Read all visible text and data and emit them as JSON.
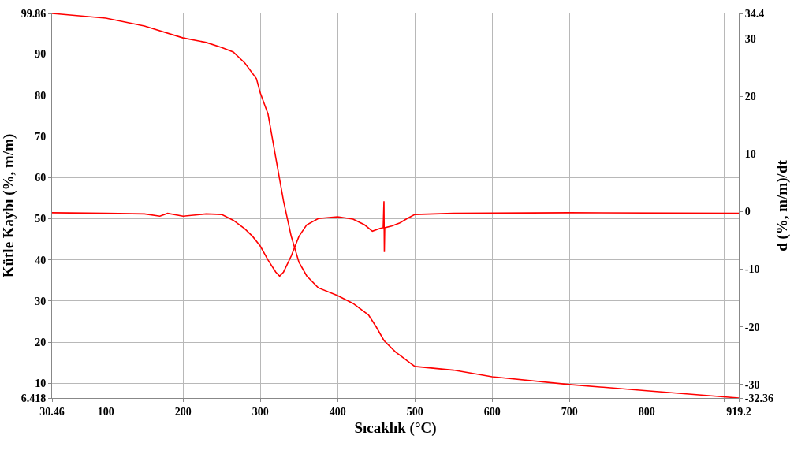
{
  "chart_data": {
    "type": "line",
    "xlabel": "Sıcaklık (°C)",
    "ylabel": "Kütle Kaybı (%, m/m)",
    "y2label": "d (%, m/m)/dt",
    "xlim": [
      30.46,
      919.2
    ],
    "xticks": [
      30.46,
      100,
      200,
      300,
      400,
      500,
      600,
      700,
      800,
      {
        "value": 900,
        "label": null
      },
      919.2
    ],
    "ylim": [
      6.418,
      99.86
    ],
    "yticks": [
      6.418,
      10,
      20,
      30,
      40,
      50,
      60,
      70,
      80,
      90,
      99.86
    ],
    "y2lim": [
      -32.36,
      34.4
    ],
    "y2ticks": [
      -32.36,
      -30,
      -20,
      -10,
      0,
      10,
      20,
      30,
      34.4
    ],
    "grid": true,
    "marker": "none",
    "line_style": "solid",
    "series": [
      {
        "color": "#ff0000",
        "x": [
          30.46,
          100,
          150,
          200,
          230,
          250,
          265,
          280,
          295,
          300,
          310,
          320,
          330,
          340,
          350,
          360,
          375,
          400,
          420,
          440,
          450,
          460,
          475,
          490,
          500,
          550,
          600,
          700,
          800,
          919.2
        ],
        "values": [
          99.86,
          98.7,
          96.8,
          93.9,
          92.8,
          91.6,
          90.5,
          87.8,
          84,
          80.5,
          75.4,
          64.8,
          54.3,
          45.7,
          39.4,
          36.1,
          33.2,
          31.3,
          29.4,
          26.6,
          23.7,
          20.4,
          17.6,
          15.5,
          14.1,
          13.2,
          11.6,
          9.7,
          8.2,
          6.418
        ]
      },
      {
        "color": "#ff0000",
        "axis": "y2",
        "x": [
          30.46,
          100,
          150,
          170,
          180,
          200,
          230,
          250,
          265,
          280,
          290,
          300,
          310,
          320,
          325,
          330,
          340,
          350,
          360,
          375,
          400,
          420,
          435,
          445,
          455,
          459,
          460,
          460.5,
          461,
          470,
          480,
          490,
          500,
          550,
          700,
          919.2
        ],
        "values": [
          -0.2,
          -0.3,
          -0.4,
          -0.8,
          -0.3,
          -0.8,
          -0.4,
          -0.5,
          -1.5,
          -3,
          -4.3,
          -6,
          -8.4,
          -10.5,
          -11.2,
          -10.5,
          -7.7,
          -4.3,
          -2.3,
          -1.2,
          -0.9,
          -1.3,
          -2.3,
          -3.4,
          -2.9,
          -2.8,
          1.8,
          -7,
          -2.8,
          -2.5,
          -2,
          -1.2,
          -0.5,
          -0.3,
          -0.2,
          -0.3
        ]
      }
    ]
  }
}
